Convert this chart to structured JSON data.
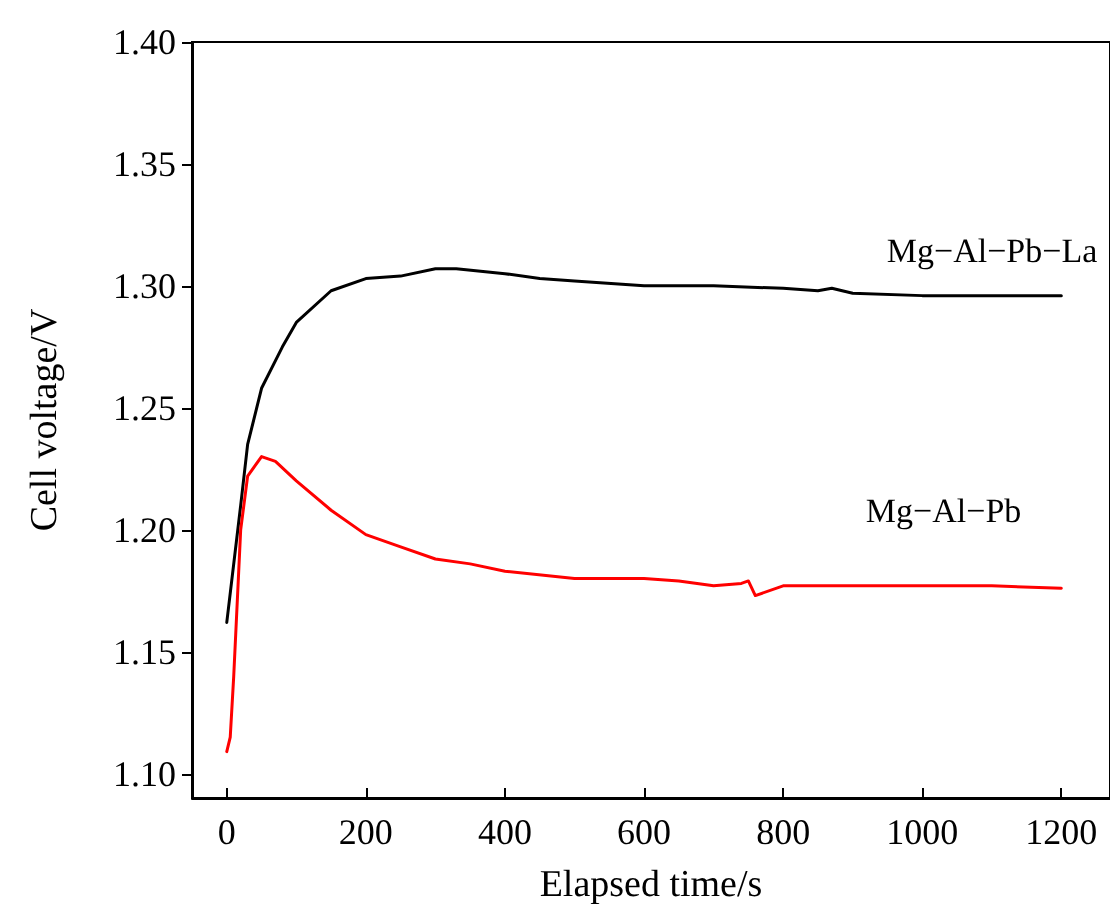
{
  "chart_data": {
    "type": "line",
    "xlabel": "Elapsed time/s",
    "ylabel": "Cell voltage/V",
    "xlim": [
      -50,
      1270
    ],
    "xticks": [
      0,
      200,
      400,
      600,
      800,
      1000,
      1200
    ],
    "ylim": [
      1.09,
      1.4
    ],
    "yticks": [
      {
        "value": 1.1,
        "label": "1.10"
      },
      1.15,
      {
        "value": 1.2,
        "label": "1.20"
      },
      1.25,
      {
        "value": 1.3,
        "label": "1.30"
      },
      1.35,
      {
        "value": 1.4,
        "label": "1.40"
      }
    ],
    "grid": false,
    "legend": false,
    "marker": "none",
    "line_style": "solid",
    "series": [
      {
        "name": "Mg−Al−Pb−La",
        "color": "#000000",
        "x": [
          0,
          20,
          30,
          50,
          80,
          100,
          150,
          200,
          250,
          300,
          330,
          400,
          450,
          500,
          600,
          700,
          800,
          850,
          870,
          900,
          1000,
          1100,
          1200
        ],
        "values": [
          1.162,
          1.21,
          1.235,
          1.258,
          1.275,
          1.285,
          1.298,
          1.303,
          1.304,
          1.307,
          1.307,
          1.305,
          1.303,
          1.302,
          1.3,
          1.3,
          1.299,
          1.298,
          1.299,
          1.297,
          1.296,
          1.296,
          1.296
        ]
      },
      {
        "name": "Mg−Al−Pb",
        "color": "#ff0000",
        "x": [
          0,
          5,
          10,
          20,
          30,
          50,
          70,
          100,
          150,
          200,
          250,
          300,
          350,
          400,
          500,
          600,
          650,
          700,
          740,
          750,
          760,
          800,
          900,
          1000,
          1100,
          1200
        ],
        "values": [
          1.109,
          1.115,
          1.14,
          1.2,
          1.222,
          1.23,
          1.228,
          1.22,
          1.208,
          1.198,
          1.193,
          1.188,
          1.186,
          1.183,
          1.18,
          1.18,
          1.179,
          1.177,
          1.178,
          1.179,
          1.173,
          1.177,
          1.177,
          1.177,
          1.177,
          1.176
        ]
      }
    ]
  }
}
